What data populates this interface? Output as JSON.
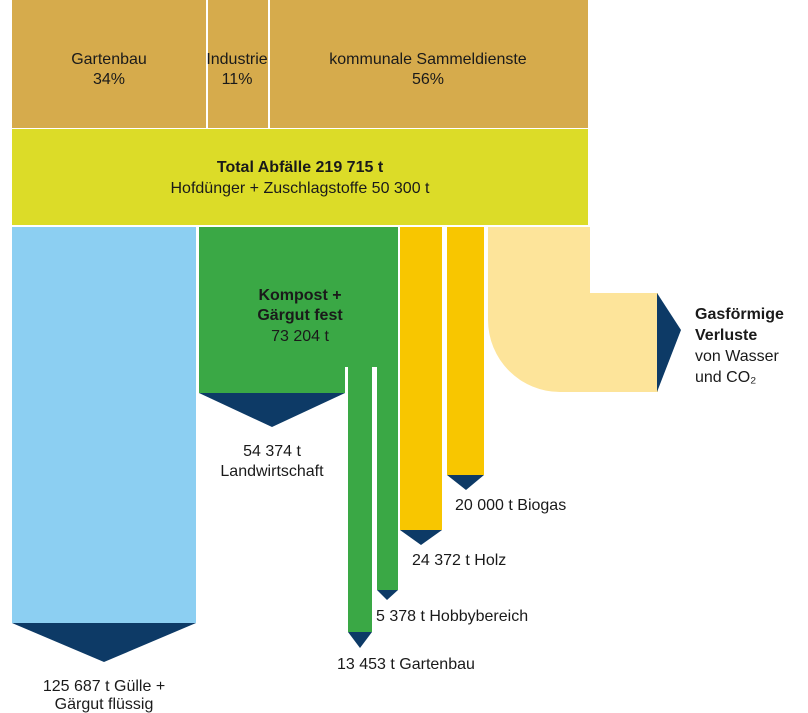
{
  "sources": [
    {
      "name": "Gartenbau",
      "share": "34%"
    },
    {
      "name": "Industrie",
      "share": "11%"
    },
    {
      "name": "kommunale Sammeldienste",
      "share": "56%"
    }
  ],
  "total": {
    "title": "Total Abfälle 219 715 t",
    "subtitle": "Hofdünger + Zuschlagstoffe 50 300 t"
  },
  "compost": {
    "lines": [
      "Kompost +",
      "Gärgut fest"
    ],
    "amount": "73 204 t"
  },
  "losses": {
    "lines": [
      "Gasförmige",
      "Verluste"
    ],
    "detail": [
      "von Wasser",
      "und CO₂"
    ]
  },
  "outputs": {
    "landwirtschaft": [
      "54 374 t",
      "Landwirtschaft"
    ],
    "guelle": [
      "125 687 t Gülle +",
      "Gärgut flüssig"
    ],
    "gartenbau": "13 453 t Gartenbau",
    "hobby": "5 378 t Hobbybereich",
    "holz": "24 372 t Holz",
    "biogas": "20 000 t Biogas"
  }
}
